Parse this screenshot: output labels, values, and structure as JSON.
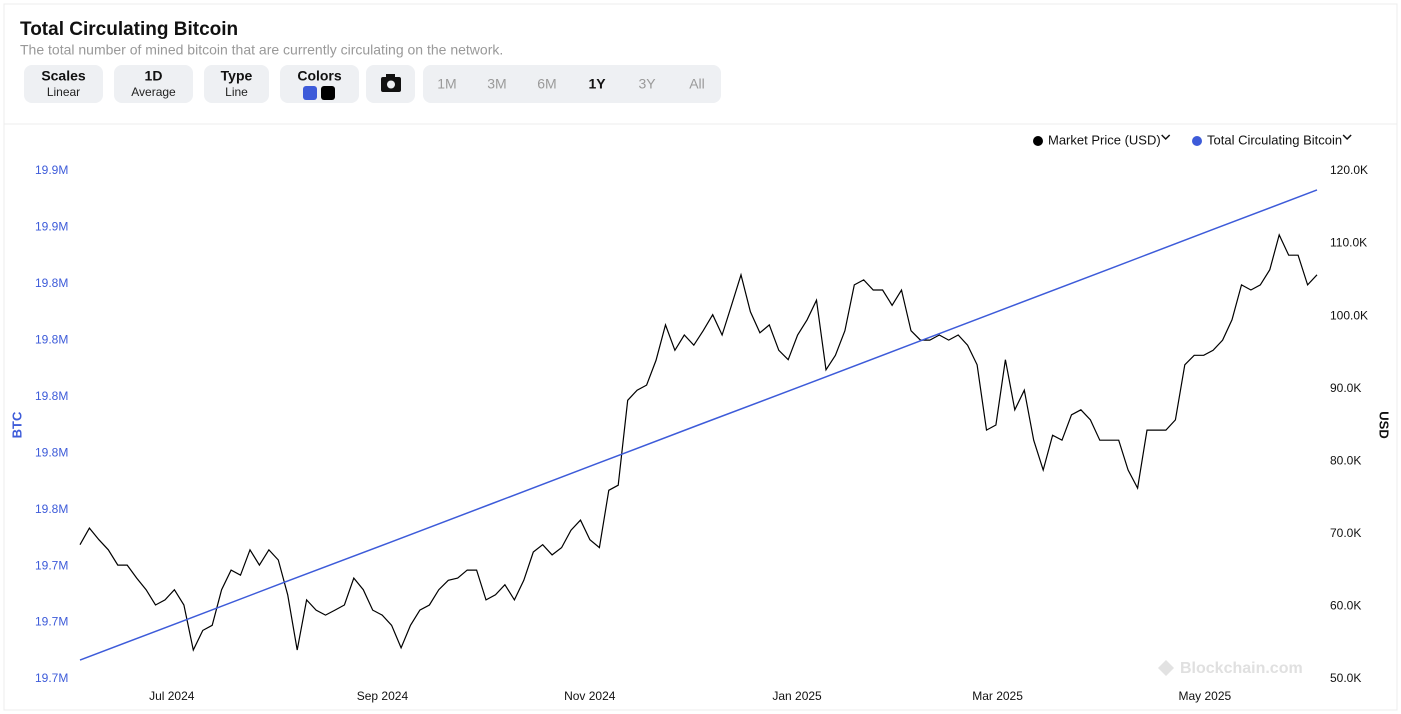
{
  "header": {
    "title": "Total Circulating Bitcoin",
    "subtitle": "The total number of mined bitcoin that are currently circulating on the network."
  },
  "controls": [
    {
      "label": "Scales",
      "value": "Linear"
    },
    {
      "label": "1D",
      "value": "Average"
    },
    {
      "label": "Type",
      "value": "Line"
    },
    {
      "label": "Colors"
    }
  ],
  "ranges": [
    "1M",
    "3M",
    "6M",
    "1Y",
    "3Y",
    "All"
  ],
  "selected_range": "1Y",
  "watermark": "Blockchain.com",
  "chart_data": {
    "type": "line",
    "grid": false,
    "ylabel": "BTC",
    "y2label": "USD",
    "xlim": [
      "2024-06-04",
      "2025-06-03"
    ],
    "xticks": [
      {
        "value": "2024-07-01",
        "label": "Jul 2024"
      },
      {
        "value": "2024-09-01",
        "label": "Sep 2024"
      },
      {
        "value": "2024-11-01",
        "label": "Nov 2024"
      },
      {
        "value": "2025-01-01",
        "label": "Jan 2025"
      },
      {
        "value": "2025-03-01",
        "label": "Mar 2025"
      },
      {
        "value": "2025-05-01",
        "label": "May 2025"
      }
    ],
    "ylim": [
      19700000,
      19880000
    ],
    "yticks": [
      {
        "value": 19700000,
        "label": "19.7M"
      },
      {
        "value": 19720000,
        "label": "19.7M"
      },
      {
        "value": 19740000,
        "label": "19.7M"
      },
      {
        "value": 19760000,
        "label": "19.8M"
      },
      {
        "value": 19780000,
        "label": "19.8M"
      },
      {
        "value": 19800000,
        "label": "19.8M"
      },
      {
        "value": 19820000,
        "label": "19.8M"
      },
      {
        "value": 19840000,
        "label": "19.8M"
      },
      {
        "value": 19860000,
        "label": "19.9M"
      },
      {
        "value": 19880000,
        "label": "19.9M"
      }
    ],
    "y2lim": [
      50000,
      120000
    ],
    "y2ticks": [
      {
        "value": 50000,
        "label": "50.0K"
      },
      {
        "value": 60000,
        "label": "60.0K"
      },
      {
        "value": 70000,
        "label": "70.0K"
      },
      {
        "value": 80000,
        "label": "80.0K"
      },
      {
        "value": 90000,
        "label": "90.0K"
      },
      {
        "value": 100000,
        "label": "100.0K"
      },
      {
        "value": 110000,
        "label": "110.0K"
      },
      {
        "value": 120000,
        "label": "120.0K"
      }
    ],
    "series": [
      {
        "name": "Market Price (USD)",
        "color": "#000000",
        "axis": "y2",
        "values": [
          68500,
          70800,
          69200,
          67800,
          65700,
          65700,
          63900,
          62300,
          60200,
          60900,
          62300,
          60200,
          54000,
          56700,
          57400,
          62300,
          65000,
          64300,
          67800,
          65700,
          67800,
          66400,
          61600,
          54000,
          60900,
          59500,
          58800,
          59500,
          60200,
          63900,
          62300,
          59500,
          58800,
          57400,
          54300,
          57400,
          59500,
          60200,
          62300,
          63600,
          63900,
          65000,
          65000,
          60900,
          61600,
          63000,
          60900,
          63600,
          67500,
          68500,
          67100,
          68100,
          70500,
          71900,
          69200,
          68100,
          76000,
          76700,
          88400,
          89800,
          90500,
          93900,
          98800,
          95300,
          97400,
          96000,
          98000,
          100200,
          97400,
          101500,
          105700,
          100600,
          97700,
          98800,
          95300,
          94000,
          97400,
          99500,
          102200,
          92600,
          94600,
          98000,
          104300,
          105000,
          103600,
          103600,
          101500,
          103600,
          98000,
          96700,
          96700,
          97400,
          96700,
          97400,
          96000,
          93300,
          84300,
          85000,
          94000,
          87100,
          89800,
          82900,
          78800,
          83600,
          82900,
          86400,
          87100,
          85700,
          82900,
          82900,
          82900,
          78800,
          76300,
          84300,
          84300,
          84300,
          85700,
          93300,
          94600,
          94600,
          95300,
          96700,
          99500,
          104300,
          103600,
          104300,
          106400,
          111200,
          108400,
          108400,
          104300,
          105700
        ]
      },
      {
        "name": "Total Circulating Bitcoin",
        "color": "#3d5bd9",
        "axis": "y",
        "values": [
          19706700,
          19720600,
          19734500,
          19748300,
          19762200,
          19776100,
          19790000,
          19803800,
          19817700,
          19831600,
          19845500,
          19859400,
          19873300
        ]
      }
    ]
  }
}
